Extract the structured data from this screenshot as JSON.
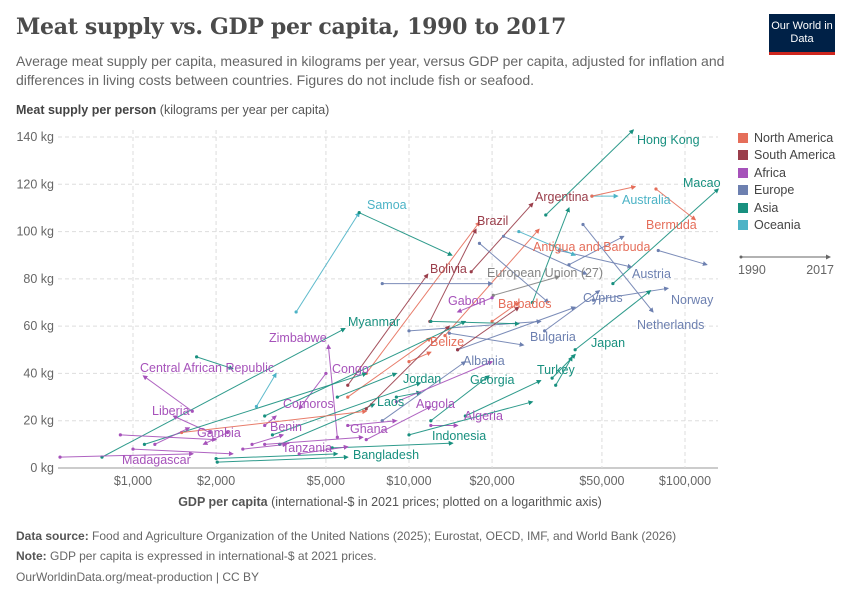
{
  "header": {
    "title": "Meat supply vs. GDP per capita, 1990 to 2017",
    "subtitle": "Average meat supply per capita, measured in kilograms per year, versus GDP per capita, adjusted for inflation and differences in living costs between countries. Figures do not include fish or seafood.",
    "logo": "Our World in Data"
  },
  "footer": {
    "source_label": "Data source:",
    "source": "Food and Agriculture Organization of the United Nations (2025); Eurostat, OECD, IMF, and World Bank (2026)",
    "note_label": "Note:",
    "note": "GDP per capita is expressed in international-$ at 2021 prices.",
    "url": "OurWorldinData.org/meat-production | CC BY"
  },
  "legend": {
    "regions": [
      {
        "name": "North America",
        "color": "#E56E5A"
      },
      {
        "name": "South America",
        "color": "#9A3E4B"
      },
      {
        "name": "Africa",
        "color": "#A652BA"
      },
      {
        "name": "Europe",
        "color": "#6D80B0"
      },
      {
        "name": "Asia",
        "color": "#18907F"
      },
      {
        "name": "Oceania",
        "color": "#4CB3C6"
      }
    ],
    "other_color": "#858585",
    "start_year": "1990",
    "end_year": "2017"
  },
  "chart_data": {
    "type": "scatter",
    "title": "Meat supply vs. GDP per capita, 1990 to 2017",
    "ylabel_bold": "Meat supply per person",
    "ylabel": "(kilograms per year per capita)",
    "xlabel_bold": "GDP per capita",
    "xlabel": "(international-$ in 2021 prices; plotted on a logarithmic axis)",
    "x_scale": "log",
    "xlim": [
      535,
      132000
    ],
    "ylim": [
      0,
      140
    ],
    "grid": true,
    "legend_position": "right",
    "x_ticks": [
      {
        "v": 1000,
        "l": "$1,000"
      },
      {
        "v": 2000,
        "l": "$2,000"
      },
      {
        "v": 5000,
        "l": "$5,000"
      },
      {
        "v": 10000,
        "l": "$10,000"
      },
      {
        "v": 20000,
        "l": "$20,000"
      },
      {
        "v": 50000,
        "l": "$50,000"
      },
      {
        "v": 100000,
        "l": "$100,000"
      }
    ],
    "y_ticks": [
      {
        "v": 0,
        "l": "0 kg"
      },
      {
        "v": 20,
        "l": "20 kg"
      },
      {
        "v": 40,
        "l": "40 kg"
      },
      {
        "v": 60,
        "l": "60 kg"
      },
      {
        "v": 80,
        "l": "80 kg"
      },
      {
        "v": 100,
        "l": "100 kg"
      },
      {
        "v": 120,
        "l": "120 kg"
      },
      {
        "v": 140,
        "l": "140 kg"
      }
    ],
    "series": [
      {
        "name": "Hong Kong",
        "region": "Asia",
        "gdp": [
          31300,
          65000
        ],
        "meat": [
          107,
          143
        ]
      },
      {
        "name": "Macao",
        "region": "Asia",
        "gdp": [
          54800,
          132000
        ],
        "meat": [
          78,
          118
        ]
      },
      {
        "name": "Argentina",
        "region": "South America",
        "gdp": [
          16800,
          28100
        ],
        "meat": [
          83,
          112
        ]
      },
      {
        "name": "Australia",
        "region": "Oceania",
        "gdp": [
          46000,
          57000
        ],
        "meat": [
          115,
          115
        ]
      },
      {
        "name": "Samoa",
        "region": "Oceania",
        "gdp": [
          3900,
          6600
        ],
        "meat": [
          66,
          108
        ]
      },
      {
        "name": "Bermuda",
        "region": "North America",
        "gdp": [
          78500,
          109000
        ],
        "meat": [
          118,
          105
        ]
      },
      {
        "name": "Brazil",
        "region": "South America",
        "gdp": [
          11900,
          17500
        ],
        "meat": [
          62,
          101
        ]
      },
      {
        "name": "Antigua and Barbuda",
        "region": "North America",
        "gdp": [
          13500,
          29600
        ],
        "meat": [
          56,
          101
        ]
      },
      {
        "name": "Bolivia",
        "region": "South America",
        "gdp": [
          6000,
          11700
        ],
        "meat": [
          35,
          82
        ]
      },
      {
        "name": "European Union (27)",
        "region": "Other",
        "gdp": [
          20200,
          35000
        ],
        "meat": [
          73,
          81
        ]
      },
      {
        "name": "Austria",
        "region": "Europe",
        "gdp": [
          35000,
          64000
        ],
        "meat": [
          92,
          85
        ]
      },
      {
        "name": "Gabon",
        "region": "Africa",
        "gdp": [
          20000,
          15000
        ],
        "meat": [
          72,
          66
        ]
      },
      {
        "name": "Barbados",
        "region": "North America",
        "gdp": [
          20000,
          25000
        ],
        "meat": [
          62,
          70
        ]
      },
      {
        "name": "Cyprus",
        "region": "Europe",
        "gdp": [
          31000,
          49000
        ],
        "meat": [
          58,
          75
        ]
      },
      {
        "name": "Norway",
        "region": "Europe",
        "gdp": [
          46500,
          86800
        ],
        "meat": [
          71,
          76
        ]
      },
      {
        "name": "Myanmar",
        "region": "Asia",
        "gdp": [
          772,
          5860
        ],
        "meat": [
          4.6,
          59
        ]
      },
      {
        "name": "Netherlands",
        "region": "Europe",
        "gdp": [
          42700,
          76600
        ],
        "meat": [
          103,
          66
        ]
      },
      {
        "name": "Zimbabwe",
        "region": "Africa",
        "gdp": [
          5500,
          5100
        ],
        "meat": [
          13,
          52
        ]
      },
      {
        "name": "Bulgaria",
        "region": "Europe",
        "gdp": [
          14000,
          26000
        ],
        "meat": [
          57,
          52
        ]
      },
      {
        "name": "Japan",
        "region": "Asia",
        "gdp": [
          33000,
          40000
        ],
        "meat": [
          38,
          48
        ]
      },
      {
        "name": "Belize",
        "region": "North America",
        "gdp": [
          10000,
          12000
        ],
        "meat": [
          45,
          49
        ]
      },
      {
        "name": "Albania",
        "region": "Europe",
        "gdp": [
          8000,
          16000
        ],
        "meat": [
          20,
          45
        ]
      },
      {
        "name": "Central African Republic",
        "region": "Africa",
        "gdp": [
          1640,
          1090
        ],
        "meat": [
          24,
          39
        ]
      },
      {
        "name": "Congo",
        "region": "Africa",
        "gdp": [
          5000,
          4000
        ],
        "meat": [
          40,
          25
        ]
      },
      {
        "name": "Turkey",
        "region": "Asia",
        "gdp": [
          34000,
          39000
        ],
        "meat": [
          35,
          47
        ]
      },
      {
        "name": "Jordan",
        "region": "Asia",
        "gdp": [
          9000,
          11000
        ],
        "meat": [
          30,
          32
        ]
      },
      {
        "name": "Georgia",
        "region": "Asia",
        "gdp": [
          12000,
          19500
        ],
        "meat": [
          20,
          39
        ]
      },
      {
        "name": "Comoros",
        "region": "Africa",
        "gdp": [
          3000,
          3300
        ],
        "meat": [
          18,
          22
        ]
      },
      {
        "name": "Laos",
        "region": "Asia",
        "gdp": [
          3400,
          7500
        ],
        "meat": [
          10,
          27
        ]
      },
      {
        "name": "Angola",
        "region": "Africa",
        "gdp": [
          6000,
          9000
        ],
        "meat": [
          18,
          20
        ]
      },
      {
        "name": "Liberia",
        "region": "Africa",
        "gdp": [
          1900,
          1400
        ],
        "meat": [
          15,
          22
        ]
      },
      {
        "name": "Algeria",
        "region": "Africa",
        "gdp": [
          12000,
          15000
        ],
        "meat": [
          18,
          18
        ]
      },
      {
        "name": "Gambia",
        "region": "Africa",
        "gdp": [
          2200,
          1800
        ],
        "meat": [
          15,
          10
        ]
      },
      {
        "name": "Benin",
        "region": "Africa",
        "gdp": [
          2700,
          3500
        ],
        "meat": [
          10,
          14
        ]
      },
      {
        "name": "Ghana",
        "region": "Africa",
        "gdp": [
          3000,
          6800
        ],
        "meat": [
          10,
          13
        ]
      },
      {
        "name": "Indonesia",
        "region": "Asia",
        "gdp": [
          5270,
          14400
        ],
        "meat": [
          8.5,
          10.5
        ]
      },
      {
        "name": "Tanzania",
        "region": "Africa",
        "gdp": [
          2500,
          3600
        ],
        "meat": [
          8,
          10
        ]
      },
      {
        "name": "Madagascar",
        "region": "Africa",
        "gdp": [
          544,
          1650
        ],
        "meat": [
          4.6,
          6
        ]
      },
      {
        "name": "Bangladesh",
        "region": "Asia",
        "gdp": [
          2020,
          6000
        ],
        "meat": [
          2.5,
          4.6
        ]
      },
      {
        "region": "North America",
        "gdp": [
          46000,
          66000
        ],
        "meat": [
          115,
          119
        ]
      },
      {
        "region": "Asia",
        "gdp": [
          6600,
          14300
        ],
        "meat": [
          108,
          90
        ]
      },
      {
        "region": "Europe",
        "gdp": [
          22000,
          44000
        ],
        "meat": [
          98,
          82
        ]
      },
      {
        "region": "Europe",
        "gdp": [
          38000,
          60000
        ],
        "meat": [
          86,
          98
        ]
      },
      {
        "region": "Europe",
        "gdp": [
          80000,
          120000
        ],
        "meat": [
          92,
          86
        ]
      },
      {
        "region": "Asia",
        "gdp": [
          28000,
          38000
        ],
        "meat": [
          70,
          110
        ]
      },
      {
        "region": "North America",
        "gdp": [
          7000,
          18000
        ],
        "meat": [
          40,
          104
        ]
      },
      {
        "region": "Oceania",
        "gdp": [
          25000,
          40000
        ],
        "meat": [
          100,
          90
        ]
      },
      {
        "region": "Europe",
        "gdp": [
          8000,
          20000
        ],
        "meat": [
          78,
          78
        ]
      },
      {
        "region": "Europe",
        "gdp": [
          10000,
          30000
        ],
        "meat": [
          58,
          62
        ]
      },
      {
        "region": "Europe",
        "gdp": [
          15000,
          40000
        ],
        "meat": [
          50,
          68
        ]
      },
      {
        "region": "Asia",
        "gdp": [
          12000,
          25000
        ],
        "meat": [
          62,
          61
        ]
      },
      {
        "region": "Asia",
        "gdp": [
          40000,
          75000
        ],
        "meat": [
          50,
          75
        ]
      },
      {
        "region": "South America",
        "gdp": [
          7000,
          14000
        ],
        "meat": [
          25,
          60
        ]
      },
      {
        "region": "North America",
        "gdp": [
          6000,
          12000
        ],
        "meat": [
          30,
          55
        ]
      },
      {
        "region": "Asia",
        "gdp": [
          3000,
          16000
        ],
        "meat": [
          22,
          62
        ]
      },
      {
        "region": "Africa",
        "gdp": [
          9000,
          20000
        ],
        "meat": [
          28,
          45
        ]
      },
      {
        "region": "Asia",
        "gdp": [
          1100,
          7000
        ],
        "meat": [
          10,
          40
        ]
      },
      {
        "region": "Oceania",
        "gdp": [
          2800,
          3300
        ],
        "meat": [
          26,
          40
        ]
      },
      {
        "region": "Asia",
        "gdp": [
          1700,
          2300
        ],
        "meat": [
          47,
          42
        ]
      },
      {
        "region": "Asia",
        "gdp": [
          5500,
          9000
        ],
        "meat": [
          30,
          40
        ]
      },
      {
        "region": "Asia",
        "gdp": [
          3200,
          11000
        ],
        "meat": [
          14,
          36
        ]
      },
      {
        "region": "Africa",
        "gdp": [
          7000,
          12000
        ],
        "meat": [
          12,
          26
        ]
      },
      {
        "region": "North America",
        "gdp": [
          1500,
          7000
        ],
        "meat": [
          15,
          24
        ]
      },
      {
        "region": "Africa",
        "gdp": [
          1000,
          2300
        ],
        "meat": [
          8,
          6
        ]
      },
      {
        "region": "Africa",
        "gdp": [
          900,
          2000
        ],
        "meat": [
          14,
          12
        ]
      },
      {
        "region": "Asia",
        "gdp": [
          2000,
          5500
        ],
        "meat": [
          4,
          6
        ]
      },
      {
        "region": "Africa",
        "gdp": [
          4000,
          6000
        ],
        "meat": [
          6,
          9
        ]
      },
      {
        "region": "Asia",
        "gdp": [
          16000,
          30000
        ],
        "meat": [
          22,
          37
        ]
      },
      {
        "region": "Asia",
        "gdp": [
          10000,
          28000
        ],
        "meat": [
          14,
          28
        ]
      },
      {
        "region": "Africa",
        "gdp": [
          1200,
          1600
        ],
        "meat": [
          10,
          17
        ]
      },
      {
        "region": "South America",
        "gdp": [
          15000,
          25000
        ],
        "meat": [
          50,
          68
        ]
      },
      {
        "region": "Europe",
        "gdp": [
          18000,
          32000
        ],
        "meat": [
          95,
          70
        ]
      }
    ]
  }
}
